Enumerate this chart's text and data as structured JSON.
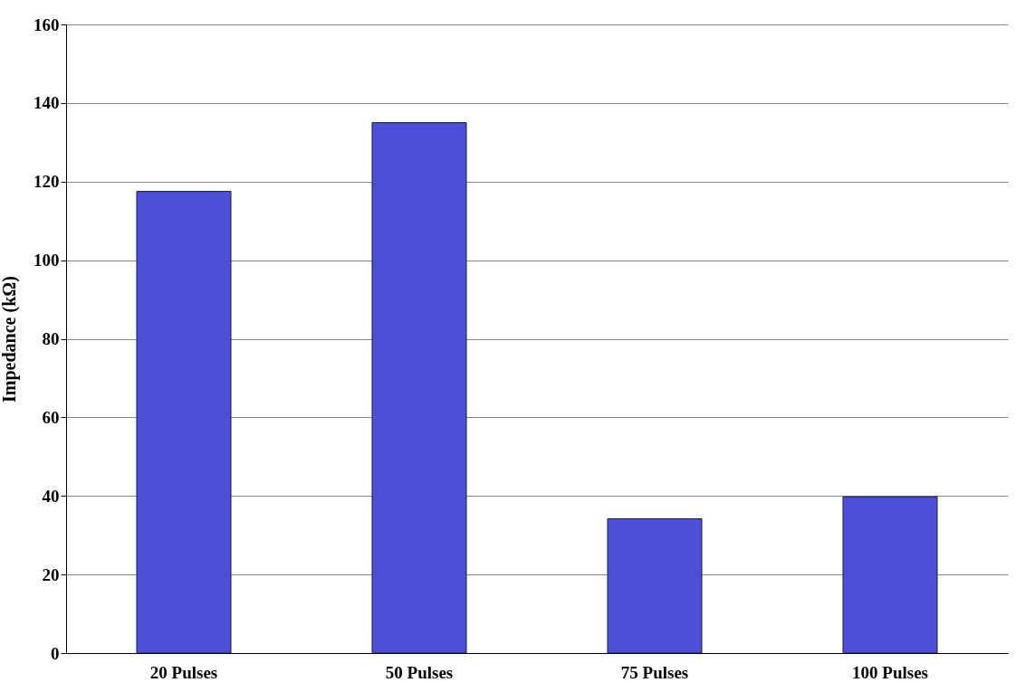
{
  "chart_data": {
    "type": "bar",
    "ylabel": "Impedance (kΩ)",
    "categories": [
      "20 Pulses",
      "50 Pulses",
      "75 Pulses",
      "100 Pulses"
    ],
    "values": [
      117.5,
      135,
      34.2,
      39.8
    ],
    "color": "#4d4fd6",
    "ylim": [
      0,
      160
    ],
    "yticks": [
      0,
      20,
      40,
      60,
      80,
      100,
      120,
      140,
      160
    ],
    "grid": "y"
  }
}
